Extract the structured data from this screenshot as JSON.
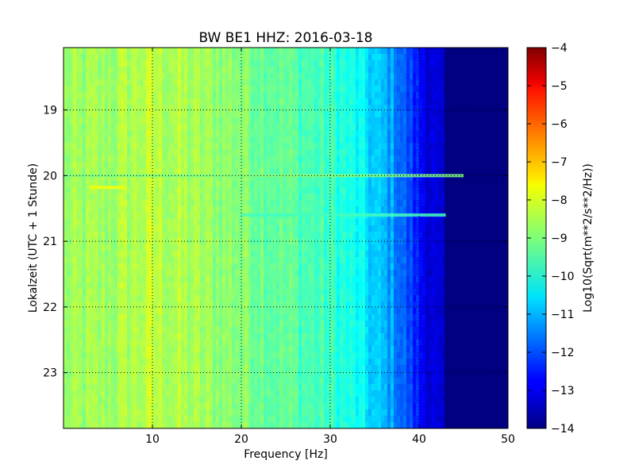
{
  "chart_data": {
    "type": "heatmap",
    "title": "BW BE1 HHZ: 2016-03-18",
    "xlabel": "Frequency [Hz]",
    "ylabel": "Lokalzeit (UTC + 1 Stunde)",
    "xlim": [
      0,
      50
    ],
    "ylim": [
      18.05,
      23.85
    ],
    "y_inverted": true,
    "x_ticks": [
      10,
      20,
      30,
      40,
      50
    ],
    "y_ticks": [
      19,
      20,
      21,
      22,
      23
    ],
    "grid": true,
    "colorbar": {
      "label": "Log10(Sqrt(m**2/s**2/Hz))",
      "range": [
        -14,
        -4
      ],
      "ticks": [
        -4,
        -5,
        -6,
        -7,
        -8,
        -9,
        -10,
        -11,
        -12,
        -13,
        -14
      ],
      "colormap": "jet"
    },
    "spectral_profile": {
      "frequency_hz": [
        0,
        5,
        10,
        15,
        20,
        25,
        30,
        33,
        35,
        37,
        38,
        40,
        42,
        44,
        45,
        50
      ],
      "log_amplitude": [
        -8.8,
        -8.7,
        -8.4,
        -8.7,
        -8.9,
        -9.3,
        -9.7,
        -10.2,
        -10.8,
        -11.2,
        -11.7,
        -12.6,
        -13.3,
        -14,
        -14,
        -14
      ]
    },
    "features": [
      {
        "time": 20.0,
        "freq_range": [
          0,
          45
        ],
        "log_amplitude": -9.0
      },
      {
        "time": 20.6,
        "freq_range": [
          20,
          43
        ],
        "log_amplitude": -9.6
      },
      {
        "time": 20.18,
        "freq_range": [
          3,
          7
        ],
        "log_amplitude": -7.8
      }
    ]
  }
}
